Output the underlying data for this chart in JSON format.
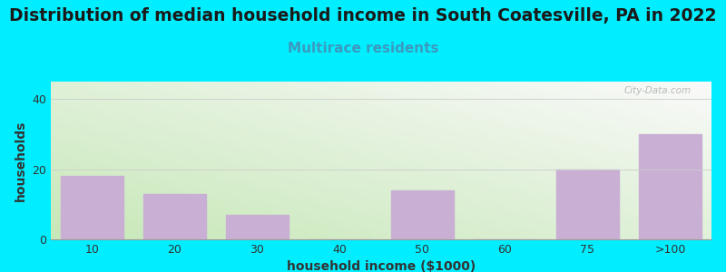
{
  "title": "Distribution of median household income in South Coatesville, PA in 2022",
  "subtitle": "Multirace residents",
  "xlabel": "household income ($1000)",
  "ylabel": "households",
  "categories": [
    "10",
    "20",
    "30",
    "40",
    "50",
    "60",
    "75",
    ">100"
  ],
  "values": [
    18,
    13,
    7,
    0,
    14,
    0,
    20,
    30
  ],
  "bar_color": "#c9afd4",
  "background_outer": "#00eeff",
  "plot_bg_green": "#c8e8b8",
  "plot_bg_white": "#f8f8f8",
  "ylim": [
    0,
    45
  ],
  "yticks": [
    0,
    20,
    40
  ],
  "title_fontsize": 13.5,
  "subtitle_fontsize": 11,
  "subtitle_color": "#3a9abf",
  "title_color": "#1a1a1a",
  "axis_label_fontsize": 10,
  "tick_fontsize": 9,
  "watermark": "City-Data.com",
  "grid_color": "#cccccc",
  "spine_color": "#999999"
}
